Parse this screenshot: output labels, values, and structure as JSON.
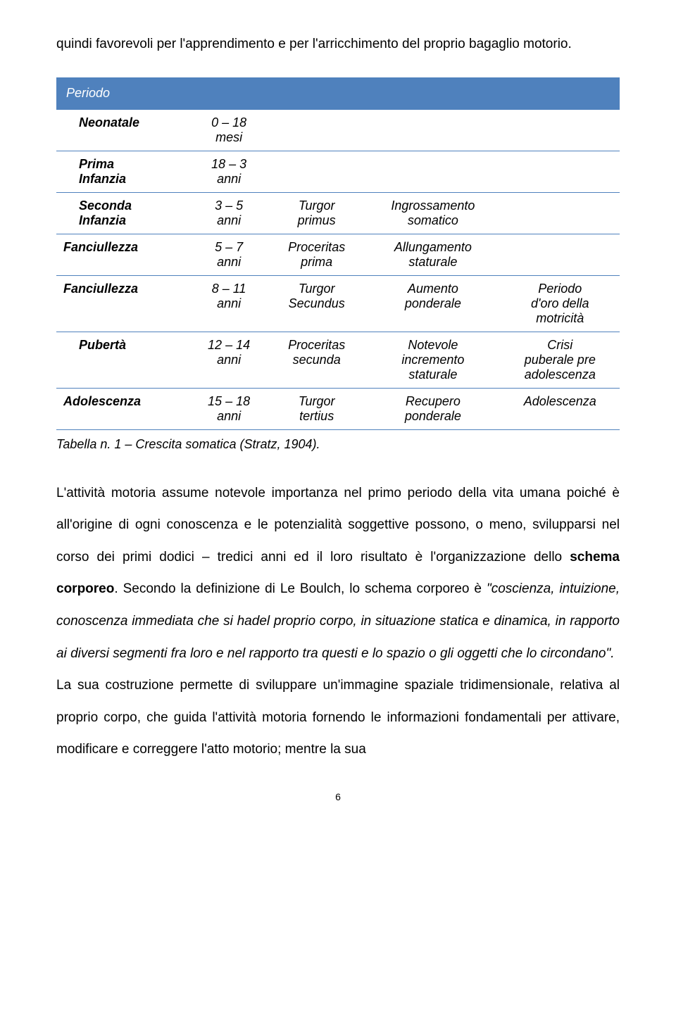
{
  "intro": "quindi favorevoli per l'apprendimento e per l'arricchimento del proprio bagaglio motorio.",
  "table": {
    "header": "Periodo",
    "rows": [
      {
        "label": "Neonatale",
        "indent": true,
        "age": "0 – 18\nmesi",
        "c3": "",
        "c4": "",
        "c5": ""
      },
      {
        "label": "Prima\nInfanzia",
        "indent": true,
        "age": "18 – 3\nanni",
        "c3": "",
        "c4": "",
        "c5": ""
      },
      {
        "label": "Seconda\nInfanzia",
        "indent": true,
        "age": "3 – 5\nanni",
        "c3": "Turgor\nprimus",
        "c4": "Ingrossamento\nsomatico",
        "c5": ""
      },
      {
        "label": "Fanciullezza",
        "indent": false,
        "age": "5 – 7\nanni",
        "c3": "Proceritas\nprima",
        "c4": "Allungamento\nstaturale",
        "c5": ""
      },
      {
        "label": "Fanciullezza",
        "indent": false,
        "age": "8 – 11\nanni",
        "c3": "Turgor\nSecundus",
        "c4": "Aumento\nponderale",
        "c5": "Periodo\nd'oro della\nmotricità"
      },
      {
        "label": "Pubertà",
        "indent": true,
        "age": "12 – 14\nanni",
        "c3": "Proceritas\nsecunda",
        "c4": "Notevole\nincremento\nstaturale",
        "c5": "Crisi\npuberale pre\nadolescenza"
      },
      {
        "label": "Adolescenza",
        "indent": false,
        "age": "15 – 18\nanni",
        "c3": "Turgor\ntertius",
        "c4": "Recupero\nponderale",
        "c5": "Adolescenza"
      }
    ]
  },
  "caption": "Tabella n. 1 – Crescita somatica (Stratz, 1904).",
  "p1a": "L'attività motoria   assume notevole importanza nel primo periodo della vita umana poiché è all'origine di ogni conoscenza e le potenzialità soggettive possono, o meno, svilupparsi nel corso dei primi dodici – tredici anni ed il loro risultato è l'organizzazione dello ",
  "p1bold": "schema corporeo",
  "p1b": ". Secondo la definizione di Le Boulch, lo schema corporeo è ",
  "p1italic": "\"coscienza, intuizione, conoscenza immediata che si hadel proprio corpo, in situazione statica e dinamica, in rapporto ai diversi segmenti fra loro e nel rapporto tra questi e lo spazio o gli oggetti che lo circondano\".",
  "p2": "La sua costruzione permette di sviluppare un'immagine spaziale tridimensionale, relativa al proprio corpo, che guida l'attività motoria fornendo le informazioni fondamentali per attivare, modificare e correggere l'atto motorio; mentre la sua",
  "page_number": "6"
}
